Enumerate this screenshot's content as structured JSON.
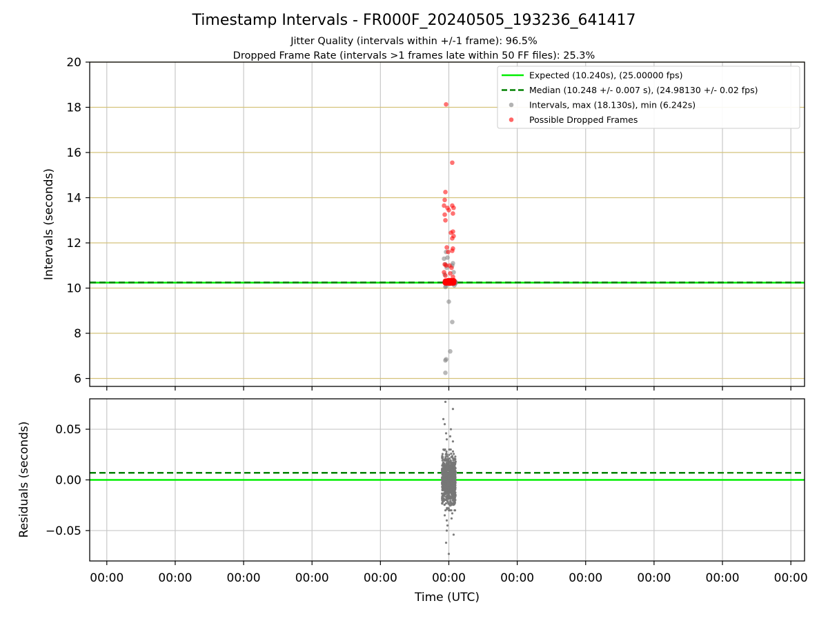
{
  "title": "Timestamp Intervals - FR000F_20240505_193236_641417",
  "subtitle_lines": [
    "Jitter Quality (intervals within +/-1 frame): 96.5%",
    "Dropped Frame Rate (intervals >1 frames late within 50 FF files): 25.3%"
  ],
  "colors": {
    "expected": "#00ee00",
    "median": "#008000",
    "intervals": "#808080",
    "dropped": "#ff0000",
    "hgrid_top": "#d4c27a",
    "grid": "#c8c8c8"
  },
  "chart_data": [
    {
      "type": "scatter",
      "panel": "intervals",
      "ylabel": "Intervals (seconds)",
      "ylim": [
        5.65,
        20
      ],
      "yticks": [
        6,
        8,
        10,
        12,
        14,
        16,
        18,
        20
      ],
      "xlim": [
        -5.25,
        5.2
      ],
      "xtick_positions": [
        -5,
        -4,
        -3,
        -2,
        -1,
        0,
        1,
        2,
        3,
        4,
        5
      ],
      "xtick_labels": [
        "00:00",
        "00:00",
        "00:00",
        "00:00",
        "00:00",
        "00:00",
        "00:00",
        "00:00",
        "00:00",
        "00:00",
        "00:00"
      ],
      "grid": true,
      "legend_position": "top-right",
      "reference_lines": [
        {
          "name": "Expected (10.240s), (25.00000 fps)",
          "y": 10.24,
          "style": "solid",
          "color": "#00ee00"
        },
        {
          "name": "Median (10.248 +/- 0.007 s), (24.98130 +/- 0.02 fps)",
          "y": 10.248,
          "style": "dashed",
          "color": "#008000"
        }
      ],
      "series": [
        {
          "name": "Intervals, max (18.130s), min (6.242s)",
          "color": "#808080",
          "cluster_x_range": [
            -0.04,
            0.1
          ],
          "cluster_y_range": [
            10.2,
            10.3
          ],
          "points": [
            [
              -0.05,
              6.25
            ],
            [
              -0.05,
              6.8
            ],
            [
              -0.04,
              6.85
            ],
            [
              0.02,
              7.2
            ],
            [
              0.05,
              8.5
            ],
            [
              0.0,
              9.4
            ],
            [
              -0.05,
              10.05
            ],
            [
              -0.04,
              10.1
            ],
            [
              0.08,
              10.12
            ],
            [
              -0.06,
              10.6
            ],
            [
              0.07,
              10.7
            ],
            [
              -0.03,
              10.9
            ],
            [
              -0.05,
              11.05
            ],
            [
              0.06,
              11.1
            ],
            [
              -0.07,
              11.3
            ],
            [
              -0.02,
              11.35
            ],
            [
              -0.04,
              11.6
            ],
            [
              0.05,
              11.0
            ]
          ]
        },
        {
          "name": "Possible Dropped Frames",
          "color": "#ff0000",
          "cluster_x_range": [
            -0.06,
            0.08
          ],
          "cluster_y_range": [
            10.2,
            10.35
          ],
          "points": [
            [
              -0.04,
              18.13
            ],
            [
              0.05,
              15.55
            ],
            [
              -0.05,
              14.25
            ],
            [
              -0.06,
              13.9
            ],
            [
              -0.07,
              13.65
            ],
            [
              -0.02,
              13.55
            ],
            [
              0.05,
              13.65
            ],
            [
              0.07,
              13.55
            ],
            [
              0.0,
              13.45
            ],
            [
              0.06,
              13.3
            ],
            [
              -0.06,
              13.25
            ],
            [
              -0.05,
              13.0
            ],
            [
              0.06,
              12.5
            ],
            [
              0.03,
              12.45
            ],
            [
              0.07,
              12.3
            ],
            [
              0.05,
              12.2
            ],
            [
              -0.03,
              11.8
            ],
            [
              0.06,
              11.75
            ],
            [
              0.05,
              11.65
            ],
            [
              -0.01,
              11.6
            ],
            [
              -0.06,
              11.05
            ],
            [
              -0.04,
              11.0
            ],
            [
              0.01,
              11.0
            ],
            [
              0.04,
              10.9
            ],
            [
              -0.07,
              10.7
            ],
            [
              0.02,
              10.65
            ],
            [
              -0.05,
              10.55
            ],
            [
              0.06,
              10.5
            ]
          ]
        }
      ]
    },
    {
      "type": "scatter",
      "panel": "residuals",
      "xlabel": "Time (UTC)",
      "ylabel": "Residuals (seconds)",
      "ylim": [
        -0.08,
        0.08
      ],
      "yticks": [
        -0.05,
        0.0,
        0.05
      ],
      "ytick_labels": [
        "−0.05",
        "0.00",
        "0.05"
      ],
      "grid": true,
      "reference_lines": [
        {
          "y": 0.0,
          "style": "solid",
          "color": "#00ee00"
        },
        {
          "y": 0.007,
          "style": "dashed",
          "color": "#008000"
        }
      ],
      "series": [
        {
          "name": "Residuals",
          "color": "#777777",
          "cluster_x_range": [
            -0.1,
            0.1
          ],
          "cluster_y_range": [
            -0.03,
            0.03
          ],
          "points": [
            [
              -0.05,
              0.077
            ],
            [
              0.06,
              0.07
            ],
            [
              -0.08,
              0.06
            ],
            [
              -0.06,
              0.055
            ],
            [
              0.03,
              0.05
            ],
            [
              -0.04,
              0.046
            ],
            [
              0.02,
              0.043
            ],
            [
              -0.03,
              0.04
            ],
            [
              0.06,
              0.038
            ],
            [
              -0.03,
              -0.04
            ],
            [
              0.04,
              -0.038
            ],
            [
              -0.02,
              -0.045
            ],
            [
              -0.03,
              -0.05
            ],
            [
              0.07,
              -0.054
            ],
            [
              -0.04,
              -0.062
            ],
            [
              0.0,
              -0.073
            ],
            [
              -0.06,
              -0.035
            ],
            [
              0.05,
              -0.033
            ]
          ]
        }
      ]
    }
  ]
}
